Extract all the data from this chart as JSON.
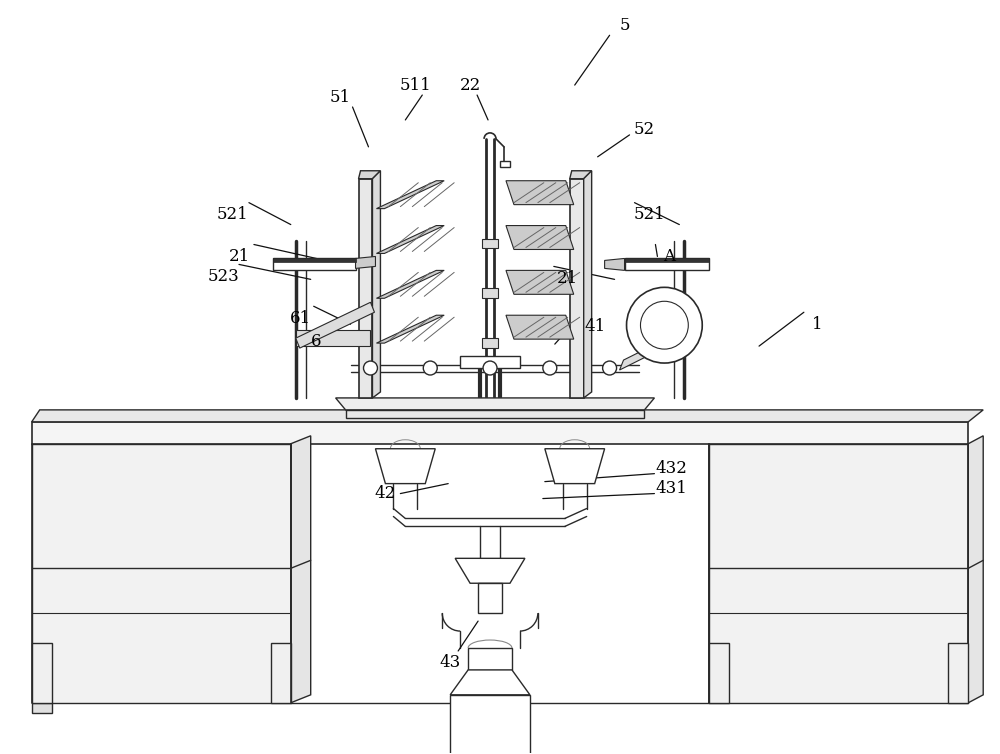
{
  "bg_color": "#ffffff",
  "line_color": "#2a2a2a",
  "lw": 1.0,
  "fig_width": 10.0,
  "fig_height": 7.54,
  "dpi": 100
}
